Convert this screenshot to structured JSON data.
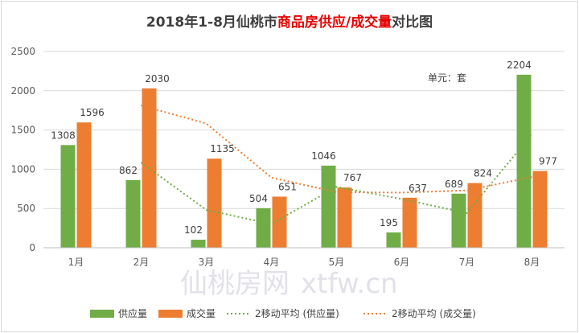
{
  "chart_data": {
    "type": "bar",
    "title_prefix": "2018年1-8月仙桃市",
    "title_highlight": "商品房供应/成交量",
    "title_suffix": "对比图",
    "categories": [
      "1月",
      "2月",
      "3月",
      "4月",
      "5月",
      "6月",
      "7月",
      "8月"
    ],
    "series": [
      {
        "name": "供应量",
        "values": [
          1308,
          862,
          102,
          504,
          1046,
          195,
          689,
          2204
        ],
        "color": "#70ad47"
      },
      {
        "name": "成交量",
        "values": [
          1596,
          2030,
          1135,
          651,
          767,
          637,
          824,
          977
        ],
        "color": "#ed7d31"
      }
    ],
    "trendlines": [
      {
        "name": "2移动平均 (供应量)",
        "values": [
          null,
          1085,
          482,
          303,
          775,
          620.5,
          442,
          1446.5
        ],
        "color": "#70ad47"
      },
      {
        "name": "2移动平均 (成交量)",
        "values": [
          null,
          1813,
          1582.5,
          893,
          709,
          702,
          730.5,
          900.5
        ],
        "color": "#ed7d31"
      }
    ],
    "ylim": [
      0,
      2500
    ],
    "yticks": [
      0,
      500,
      1000,
      1500,
      2000,
      2500
    ],
    "unit_label": "单元：套",
    "grid": true,
    "legend_position": "bottom"
  },
  "watermark": {
    "cn": "仙桃房网",
    "en": "xtfw.cn"
  }
}
